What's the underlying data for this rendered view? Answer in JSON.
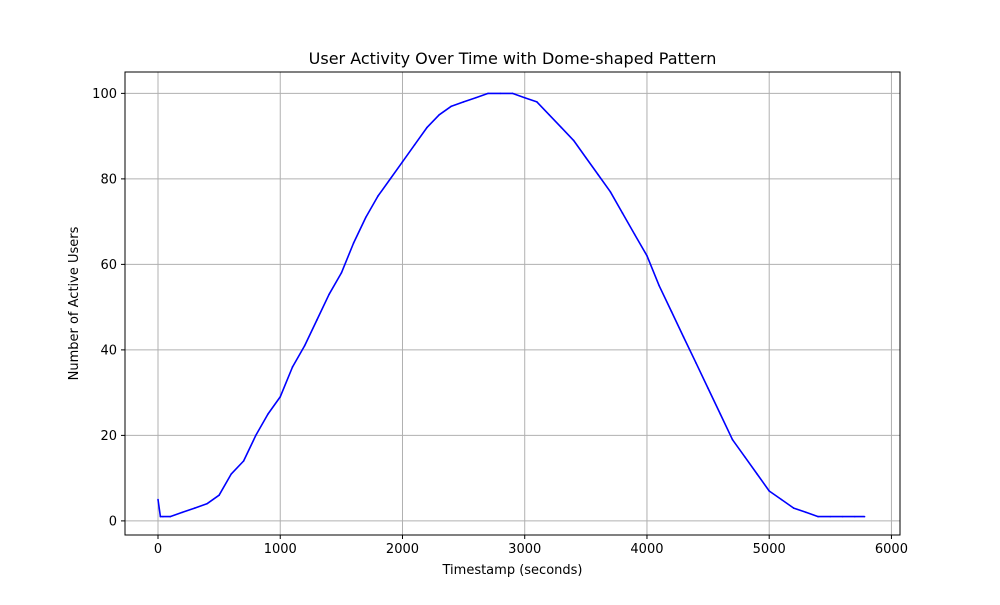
{
  "chart_data": {
    "type": "line",
    "title": "User Activity Over Time with Dome-shaped Pattern",
    "xlabel": "Timestamp (seconds)",
    "ylabel": "Number of Active Users",
    "xlim": [
      -270,
      6070
    ],
    "ylim": [
      -3.3,
      105
    ],
    "xticks": [
      0,
      1000,
      2000,
      3000,
      4000,
      5000,
      6000
    ],
    "yticks": [
      0,
      20,
      40,
      60,
      80,
      100
    ],
    "grid": true,
    "series": [
      {
        "color": "#0000ff",
        "x": [
          0,
          20,
          40,
          100,
          200,
          300,
          400,
          500,
          600,
          700,
          800,
          900,
          1000,
          1100,
          1200,
          1300,
          1400,
          1500,
          1600,
          1700,
          1800,
          1900,
          2000,
          2100,
          2200,
          2300,
          2400,
          2500,
          2600,
          2700,
          2800,
          2900,
          3000,
          3100,
          3200,
          3300,
          3400,
          3500,
          3600,
          3700,
          3800,
          3900,
          4000,
          4100,
          4200,
          4300,
          4400,
          4500,
          4600,
          4700,
          4800,
          4900,
          5000,
          5100,
          5200,
          5300,
          5400,
          5500,
          5600,
          5700,
          5780
        ],
        "y": [
          5,
          1,
          1,
          1,
          2,
          3,
          4,
          6,
          11,
          14,
          20,
          25,
          29,
          36,
          41,
          47,
          53,
          58,
          65,
          71,
          76,
          80,
          84,
          88,
          92,
          95,
          97,
          98,
          99,
          100,
          100,
          100,
          99,
          98,
          95,
          92,
          89,
          85,
          81,
          77,
          72,
          67,
          62,
          55,
          49,
          43,
          37,
          31,
          25,
          19,
          15,
          11,
          7,
          5,
          3,
          2,
          1,
          1,
          1,
          1,
          1
        ]
      }
    ]
  }
}
